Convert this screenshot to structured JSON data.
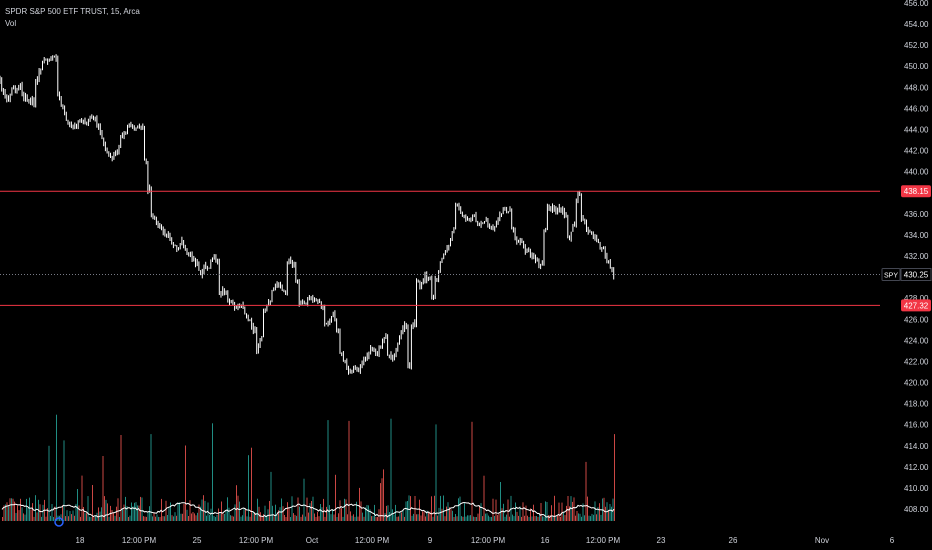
{
  "legend": {
    "title": "SPDR S&P 500 ETF TRUST, 15, Arca",
    "volume_label": "Vol"
  },
  "colors": {
    "background": "#000000",
    "candle": "#ffffff",
    "level_line": "#f23645",
    "volume_up": "#26a69a",
    "volume_down": "#ef5350",
    "volume_ma": "#ffffff",
    "price_line": "#787b86",
    "axis_text": "#d1d4dc"
  },
  "chart_data": {
    "type": "candlestick",
    "symbol": "SPY",
    "ylim": [
      406.5,
      456.5
    ],
    "yticks": [
      456,
      454,
      452,
      450,
      448,
      446,
      444,
      442,
      440,
      438,
      436,
      434,
      432,
      430,
      428,
      426,
      424,
      422,
      420,
      418,
      416,
      414,
      412,
      410,
      408
    ],
    "xticks": [
      "18",
      "12:00 PM",
      "25",
      "12:00 PM",
      "Oct",
      "12:00 PM",
      "9",
      "12:00 PM",
      "16",
      "12:00 PM",
      "23",
      "26",
      "Nov",
      "6"
    ],
    "last_price": 430.25,
    "last_price_label": "SPY",
    "horizontal_levels": [
      438.15,
      427.32
    ],
    "price_path": [
      [
        0,
        448.6
      ],
      [
        4,
        447.2
      ],
      [
        8,
        446.8
      ],
      [
        12,
        448.0
      ],
      [
        16,
        447.6
      ],
      [
        20,
        448.2
      ],
      [
        24,
        447.0
      ],
      [
        28,
        447.0
      ],
      [
        32,
        446.6
      ],
      [
        36,
        448.6
      ],
      [
        40,
        449.8
      ],
      [
        44,
        450.6
      ],
      [
        48,
        450.5
      ],
      [
        52,
        450.8
      ],
      [
        56,
        450.9
      ],
      [
        58,
        447.2
      ],
      [
        62,
        446.0
      ],
      [
        66,
        445.2
      ],
      [
        70,
        444.5
      ],
      [
        74,
        444.0
      ],
      [
        78,
        444.7
      ],
      [
        82,
        445.0
      ],
      [
        86,
        444.6
      ],
      [
        90,
        445.0
      ],
      [
        94,
        445.0
      ],
      [
        98,
        444.5
      ],
      [
        102,
        443.0
      ],
      [
        106,
        442.0
      ],
      [
        110,
        441.2
      ],
      [
        114,
        441.5
      ],
      [
        118,
        442.0
      ],
      [
        122,
        443.5
      ],
      [
        126,
        444.0
      ],
      [
        130,
        444.4
      ],
      [
        134,
        444.0
      ],
      [
        138,
        444.3
      ],
      [
        142,
        444.0
      ],
      [
        146,
        441.0
      ],
      [
        149,
        438.4
      ],
      [
        151,
        436.2
      ],
      [
        153,
        435.8
      ],
      [
        157,
        435.0
      ],
      [
        161,
        434.6
      ],
      [
        165,
        434.2
      ],
      [
        169,
        433.8
      ],
      [
        173,
        433.2
      ],
      [
        177,
        432.8
      ],
      [
        181,
        433.5
      ],
      [
        185,
        432.8
      ],
      [
        189,
        432.2
      ],
      [
        193,
        431.8
      ],
      [
        197,
        431.3
      ],
      [
        201,
        430.2
      ],
      [
        205,
        431.2
      ],
      [
        209,
        431.0
      ],
      [
        213,
        432.0
      ],
      [
        217,
        431.5
      ],
      [
        221,
        428.5
      ],
      [
        225,
        428.8
      ],
      [
        229,
        427.6
      ],
      [
        233,
        427.2
      ],
      [
        237,
        426.8
      ],
      [
        241,
        427.5
      ],
      [
        245,
        426.4
      ],
      [
        249,
        426.0
      ],
      [
        253,
        425.0
      ],
      [
        257,
        423.2
      ],
      [
        261,
        424.5
      ],
      [
        265,
        427.0
      ],
      [
        269,
        427.5
      ],
      [
        273,
        428.8
      ],
      [
        277,
        429.3
      ],
      [
        281,
        429.2
      ],
      [
        285,
        428.6
      ],
      [
        289,
        431.5
      ],
      [
        293,
        431.2
      ],
      [
        297,
        429.5
      ],
      [
        301,
        427.6
      ],
      [
        305,
        427.6
      ],
      [
        309,
        428.0
      ],
      [
        313,
        428.0
      ],
      [
        317,
        427.8
      ],
      [
        321,
        427.3
      ],
      [
        325,
        425.5
      ],
      [
        329,
        425.6
      ],
      [
        333,
        426.5
      ],
      [
        337,
        425.0
      ],
      [
        341,
        423.0
      ],
      [
        345,
        421.8
      ],
      [
        349,
        421.0
      ],
      [
        353,
        421.4
      ],
      [
        357,
        421.0
      ],
      [
        361,
        421.5
      ],
      [
        365,
        422.2
      ],
      [
        369,
        422.8
      ],
      [
        373,
        423.3
      ],
      [
        377,
        422.5
      ],
      [
        381,
        423.5
      ],
      [
        385,
        424.5
      ],
      [
        389,
        422.5
      ],
      [
        393,
        422.0
      ],
      [
        397,
        423.5
      ],
      [
        401,
        424.8
      ],
      [
        405,
        425.5
      ],
      [
        409,
        421.5
      ],
      [
        413,
        425.5
      ],
      [
        417,
        429.5
      ],
      [
        421,
        429.0
      ],
      [
        425,
        430.0
      ],
      [
        429,
        429.8
      ],
      [
        433,
        428.2
      ],
      [
        437,
        430.0
      ],
      [
        441,
        431.5
      ],
      [
        445,
        432.5
      ],
      [
        449,
        433.0
      ],
      [
        453,
        434.5
      ],
      [
        457,
        436.8
      ],
      [
        461,
        436.2
      ],
      [
        465,
        435.5
      ],
      [
        469,
        435.4
      ],
      [
        473,
        435.8
      ],
      [
        477,
        435.2
      ],
      [
        481,
        435.0
      ],
      [
        485,
        435.5
      ],
      [
        489,
        434.8
      ],
      [
        493,
        434.5
      ],
      [
        497,
        435.5
      ],
      [
        501,
        436.0
      ],
      [
        505,
        436.5
      ],
      [
        509,
        436.4
      ],
      [
        513,
        434.5
      ],
      [
        517,
        433.0
      ],
      [
        521,
        433.5
      ],
      [
        525,
        432.5
      ],
      [
        529,
        432.5
      ],
      [
        533,
        432.0
      ],
      [
        537,
        431.5
      ],
      [
        541,
        431.0
      ],
      [
        545,
        434.5
      ],
      [
        549,
        436.5
      ],
      [
        553,
        436.5
      ],
      [
        557,
        436.2
      ],
      [
        561,
        436.5
      ],
      [
        565,
        436.0
      ],
      [
        569,
        433.5
      ],
      [
        573,
        435.0
      ],
      [
        577,
        437.5
      ],
      [
        579,
        438.0
      ],
      [
        583,
        435.5
      ],
      [
        587,
        434.5
      ],
      [
        591,
        433.8
      ],
      [
        595,
        434.0
      ],
      [
        599,
        433.0
      ],
      [
        603,
        432.8
      ],
      [
        607,
        431.5
      ],
      [
        611,
        431.0
      ],
      [
        614,
        429.8
      ]
    ]
  }
}
